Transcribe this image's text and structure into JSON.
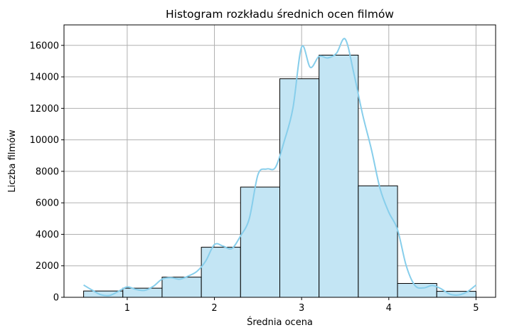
{
  "chart_data": {
    "type": "bar",
    "title": "Histogram rozkładu średnich ocen filmów",
    "xlabel": "Średnia ocena",
    "ylabel": "Liczba filmów",
    "xlim": [
      0.275,
      5.225
    ],
    "ylim": [
      0,
      17300
    ],
    "grid": true,
    "xticks": [
      1,
      2,
      3,
      4,
      5
    ],
    "yticks": [
      0,
      2000,
      4000,
      6000,
      8000,
      10000,
      12000,
      14000,
      16000
    ],
    "bins": [
      {
        "x0": 0.5,
        "x1": 0.95,
        "value": 400
      },
      {
        "x0": 0.95,
        "x1": 1.4,
        "value": 580
      },
      {
        "x0": 1.4,
        "x1": 1.85,
        "value": 1280
      },
      {
        "x0": 1.85,
        "x1": 2.3,
        "value": 3180
      },
      {
        "x0": 2.3,
        "x1": 2.75,
        "value": 7000
      },
      {
        "x0": 2.75,
        "x1": 3.2,
        "value": 13880
      },
      {
        "x0": 3.2,
        "x1": 3.65,
        "value": 15380
      },
      {
        "x0": 3.65,
        "x1": 4.1,
        "value": 7080
      },
      {
        "x0": 4.1,
        "x1": 4.55,
        "value": 880
      },
      {
        "x0": 4.55,
        "x1": 5.0,
        "value": 380
      }
    ],
    "kde": {
      "x": [
        0.5,
        0.6,
        0.7,
        0.8,
        0.9,
        1.0,
        1.1,
        1.2,
        1.3,
        1.4,
        1.5,
        1.6,
        1.7,
        1.8,
        1.9,
        2.0,
        2.1,
        2.2,
        2.3,
        2.4,
        2.5,
        2.6,
        2.7,
        2.8,
        2.9,
        3.0,
        3.1,
        3.2,
        3.3,
        3.4,
        3.5,
        3.6,
        3.7,
        3.8,
        3.9,
        4.0,
        4.1,
        4.2,
        4.3,
        4.4,
        4.5,
        4.6,
        4.7,
        4.8,
        4.9,
        5.0
      ],
      "y": [
        780,
        450,
        160,
        120,
        380,
        660,
        500,
        440,
        700,
        1150,
        1250,
        1150,
        1350,
        1650,
        2300,
        3350,
        3250,
        3100,
        3900,
        5000,
        7800,
        8150,
        8250,
        9900,
        12000,
        15900,
        14600,
        15300,
        15200,
        15500,
        16400,
        14200,
        11600,
        9400,
        6900,
        5400,
        4300,
        2000,
        750,
        600,
        750,
        540,
        200,
        150,
        350,
        780
      ]
    },
    "bar_fill": "#c3e5f4",
    "bar_edge": "#000000",
    "kde_color": "#87ceeb",
    "grid_color": "#b0b0b0"
  }
}
